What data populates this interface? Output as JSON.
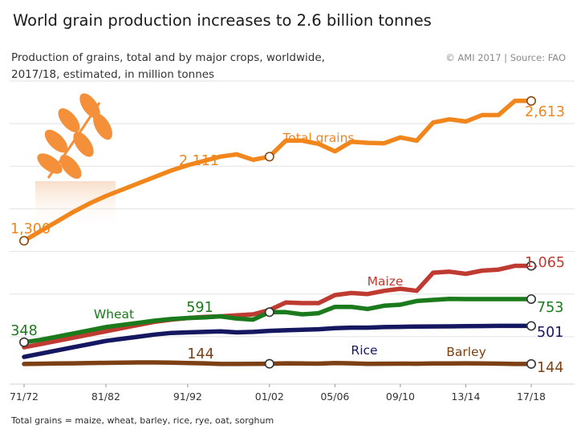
{
  "header": {
    "title": "World grain production increases to 2.6 billion tonnes",
    "subtitle_line1": "Production of grains, total and by major crops, worldwide,",
    "subtitle_line2": "2017/18, estimated, in million tonnes",
    "source": "© AMI 2017 | Source: FAO"
  },
  "footnote": "Total grains = maize, wheat, barley, rice, rye, oat, sorghum",
  "chart_data": {
    "type": "line",
    "x_ticks": [
      "71/72",
      "81/82",
      "91/92",
      "01/02",
      "05/06",
      "09/10",
      "13/14",
      "17/18"
    ],
    "x": [
      "71/72",
      "73/74",
      "75/76",
      "77/78",
      "79/80",
      "81/82",
      "83/84",
      "85/86",
      "87/88",
      "89/90",
      "91/92",
      "93/94",
      "95/96",
      "97/98",
      "99/00",
      "01/02",
      "02/03",
      "03/04",
      "04/05",
      "05/06",
      "06/07",
      "07/08",
      "08/09",
      "09/10",
      "10/11",
      "11/12",
      "12/13",
      "13/14",
      "14/15",
      "15/16",
      "16/17",
      "17/18"
    ],
    "ylim": [
      0,
      2800
    ],
    "grid": true,
    "series": [
      {
        "name": "Total grains",
        "color": "#f0861c",
        "values": [
          1300,
          1390,
          1480,
          1570,
          1650,
          1720,
          1780,
          1840,
          1900,
          1960,
          2010,
          2050,
          2090,
          2111,
          2060,
          2090,
          2240,
          2240,
          2210,
          2140,
          2230,
          2220,
          2215,
          2270,
          2240,
          2410,
          2440,
          2420,
          2480,
          2480,
          2613,
          2613
        ],
        "start_label": "1,300",
        "mid_label": "2,111",
        "end_label": "2,613"
      },
      {
        "name": "Maize",
        "color": "#bf3b32",
        "values": [
          300,
          330,
          360,
          390,
          420,
          450,
          480,
          510,
          540,
          560,
          575,
          585,
          591,
          600,
          610,
          650,
          720,
          715,
          715,
          790,
          810,
          800,
          830,
          850,
          830,
          1000,
          1010,
          990,
          1020,
          1030,
          1065,
          1065
        ],
        "end_label": "1,065"
      },
      {
        "name": "Wheat",
        "color": "#1b7a1b",
        "values": [
          348,
          370,
          400,
          430,
          460,
          490,
          510,
          530,
          550,
          565,
          575,
          580,
          591,
          570,
          560,
          630,
          630,
          610,
          620,
          680,
          680,
          660,
          690,
          700,
          735,
          745,
          755,
          753,
          753,
          753,
          753,
          753
        ],
        "start_label": "348",
        "mid_label": "591",
        "end_label": "753"
      },
      {
        "name": "Rice",
        "color": "#151860",
        "values": [
          210,
          240,
          270,
          300,
          330,
          360,
          380,
          400,
          420,
          435,
          440,
          445,
          450,
          440,
          445,
          455,
          460,
          465,
          470,
          480,
          485,
          485,
          490,
          492,
          495,
          496,
          497,
          499,
          500,
          501,
          501,
          501
        ],
        "end_label": "501"
      },
      {
        "name": "Barley",
        "color": "#7d3f14",
        "values": [
          144,
          146,
          148,
          150,
          152,
          154,
          156,
          158,
          158,
          156,
          152,
          150,
          144,
          144,
          145,
          146,
          150,
          148,
          147,
          152,
          150,
          145,
          146,
          147,
          146,
          148,
          149,
          150,
          148,
          147,
          144,
          144
        ],
        "mid_label": "144",
        "end_label": "144"
      }
    ]
  }
}
